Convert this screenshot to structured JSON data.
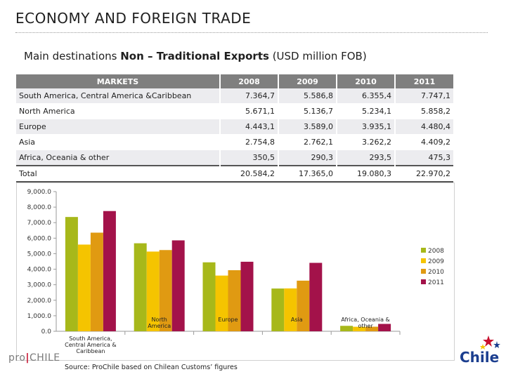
{
  "header": {
    "title": "ECONOMY AND FOREIGN TRADE",
    "subtitle_prefix": "Main destinations ",
    "subtitle_bold": "Non – Traditional Exports",
    "subtitle_suffix": " (USD million FOB)"
  },
  "table": {
    "columns": [
      "MARKETS",
      "2008",
      "2009",
      "2010",
      "2011"
    ],
    "rows": [
      [
        "South America,  Central America  &Caribbean",
        "7.364,7",
        "5.586,8",
        "6.355,4",
        "7.747,1"
      ],
      [
        "North America",
        "5.671,1",
        "5.136,7",
        "5.234,1",
        "5.858,2"
      ],
      [
        "Europe",
        "4.443,1",
        "3.589,0",
        "3.935,1",
        "4.480,4"
      ],
      [
        "Asia",
        "2.754,8",
        "2.762,1",
        "3.262,2",
        "4.409,2"
      ],
      [
        "Africa, Oceania & other",
        "350,5",
        "290,3",
        "293,5",
        "475,3"
      ],
      [
        "Total",
        "20.584,2",
        "17.365,0",
        "19.080,3",
        "22.970,2"
      ]
    ]
  },
  "chart_data": {
    "type": "bar",
    "categories": [
      "South America,\nCentral America  &\nCaribbean",
      "North\nAmerica",
      "Europe",
      "Asia",
      "Africa, Oceania &\nother"
    ],
    "series": [
      {
        "name": "2008",
        "color": "#a7b81a",
        "values": [
          7364.7,
          5671.1,
          4443.1,
          2754.8,
          350.5
        ]
      },
      {
        "name": "2009",
        "color": "#f5c400",
        "values": [
          5586.8,
          5136.7,
          3589.0,
          2762.1,
          290.3
        ]
      },
      {
        "name": "2010",
        "color": "#e09a12",
        "values": [
          6355.4,
          5234.1,
          3935.1,
          3262.2,
          293.5
        ]
      },
      {
        "name": "2011",
        "color": "#a3124a",
        "values": [
          7747.1,
          5858.2,
          4480.4,
          4409.2,
          475.3
        ]
      }
    ],
    "yticks": [
      "0.0",
      "1,000.0",
      "2,000.0",
      "3,000.0",
      "4,000.0",
      "5,000.0",
      "6,000.0",
      "7,000.0",
      "8,000.0",
      "9,000.0"
    ],
    "ylim": [
      0,
      9000
    ],
    "legend_position": "right"
  },
  "footer": {
    "source": "Source: ProChile based on Chilean Customs’ figures",
    "pro": "pro",
    "chile_brand": "CHILE",
    "chile_logo_text": "Chile"
  }
}
